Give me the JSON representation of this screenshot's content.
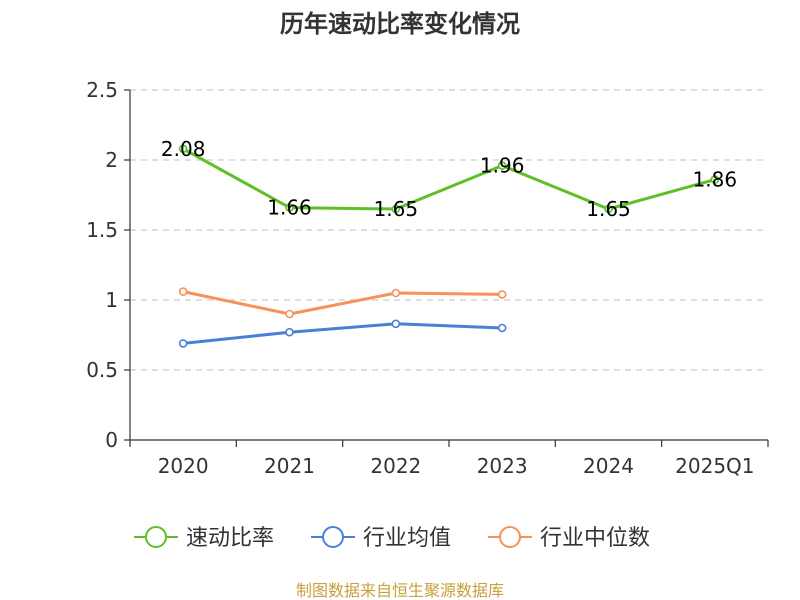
{
  "chart_data": {
    "type": "line",
    "title": "历年速动比率变化情况",
    "categories": [
      "2020",
      "2021",
      "2022",
      "2023",
      "2024",
      "2025Q1"
    ],
    "yticks": [
      "0",
      "0.5",
      "1",
      "1.5",
      "2",
      "2.5"
    ],
    "ylim": [
      0,
      2.5
    ],
    "grid": true,
    "legend_position": "bottom",
    "series": [
      {
        "name": "速动比率",
        "color": "#5ec025",
        "values": [
          2.08,
          1.66,
          1.65,
          1.96,
          1.65,
          1.86
        ],
        "labels": [
          "2.08",
          "1.66",
          "1.65",
          "1.96",
          "1.65",
          "1.86"
        ],
        "show_labels": true
      },
      {
        "name": "行业均值",
        "color": "#4a7fd8",
        "values": [
          0.69,
          0.77,
          0.83,
          0.8,
          null,
          null
        ],
        "show_labels": false
      },
      {
        "name": "行业中位数",
        "color": "#f5915a",
        "values": [
          1.06,
          0.9,
          1.05,
          1.04,
          null,
          null
        ],
        "show_labels": false
      }
    ],
    "source": "制图数据来自恒生聚源数据库",
    "source_color": "#c8a03c"
  }
}
